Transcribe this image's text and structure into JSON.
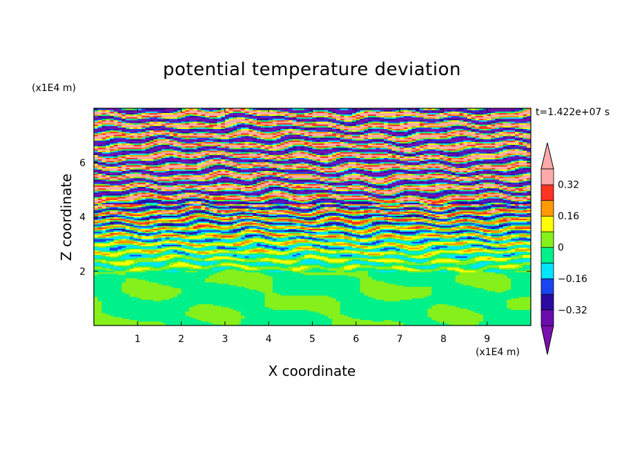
{
  "chart_data": {
    "type": "heatmap",
    "title": "potential temperature deviation",
    "xlabel": "X coordinate",
    "ylabel": "Z coordinate",
    "x_unit": "(x1E4 m)",
    "z_unit": "(x1E4 m)",
    "time_label": "t=1.422e+07 s",
    "xlim": [
      0,
      10
    ],
    "ylim": [
      0,
      8
    ],
    "x_ticks": [
      1,
      2,
      3,
      4,
      5,
      6,
      7,
      8,
      9
    ],
    "y_ticks": [
      2,
      4,
      6
    ],
    "colorbar": {
      "levels": [
        -0.4,
        -0.32,
        -0.24,
        -0.16,
        -0.08,
        0,
        0.08,
        0.16,
        0.24,
        0.32,
        0.4
      ],
      "colors": [
        "#6a0dad",
        "#2a0aa0",
        "#1a44ee",
        "#00e5ff",
        "#00f08a",
        "#86f01a",
        "#ffff00",
        "#ff9900",
        "#ff3322",
        "#ffaaaa"
      ],
      "under_color": "#7a10b0",
      "over_color": "#ffaaaa",
      "tick_labels": [
        "0.32",
        "0.16",
        "0",
        "−0.16",
        "−0.32"
      ],
      "tick_values": [
        0.32,
        0.16,
        0,
        -0.16,
        -0.32
      ]
    }
  }
}
